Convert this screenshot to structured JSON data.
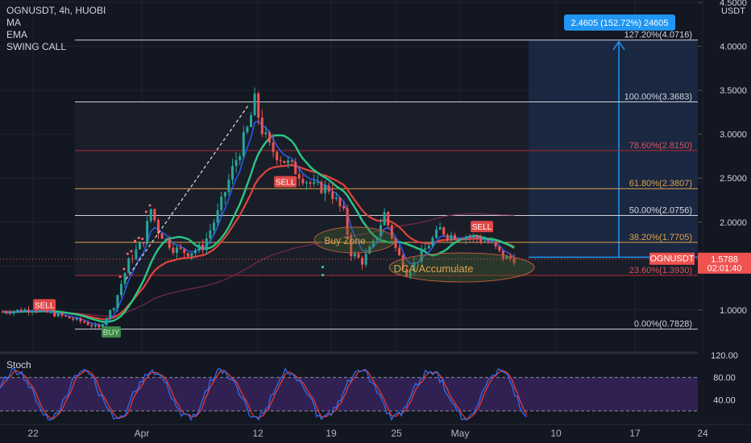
{
  "legend": {
    "symbol_line": "OGNUSDT, 4h, HUOBI",
    "indicators": [
      "MA",
      "EMA",
      "SWING CALL"
    ]
  },
  "currency": "USDT",
  "stoch_label": "Stoch",
  "price_badge": {
    "symbol": "OGNUSDT",
    "price": "1.5788",
    "countdown": "02:01:40"
  },
  "measure_label": "2.4605 (152.72%) 24605",
  "colors": {
    "background": "#131722",
    "fib_white": "#d1d4dc",
    "fib_red": "#b22833",
    "fib_orange": "#e0a24a",
    "ema_red": "#e0443a",
    "ma_green": "#29c785",
    "ma_blue": "#2962ff",
    "stoch_k": "#2f6cf5",
    "stoch_d": "#e53935",
    "stoch_band": "#4a2a7a",
    "measure_blue": "#2196f3",
    "sell_badge": "#e04848",
    "buy_badge": "#3c8a4c"
  },
  "chart_data": [
    {
      "type": "candlestick",
      "title": "OGNUSDT, 4h, HUOBI",
      "ylim": [
        0.55,
        4.5
      ],
      "yticks": [
        "4.5000",
        "4.0000",
        "3.5000",
        "3.0000",
        "2.5000",
        "2.0000",
        "1.5000",
        "1.0000"
      ],
      "xticks": [
        "22",
        "Apr",
        "12",
        "19",
        "25",
        "May",
        "10",
        "17",
        "24"
      ],
      "close_path": [
        [
          0,
          0.98
        ],
        [
          8,
          1.01
        ],
        [
          16,
          0.93
        ],
        [
          22,
          0.86
        ],
        [
          26,
          0.79
        ],
        [
          30,
          1.05
        ],
        [
          34,
          1.55
        ],
        [
          38,
          1.8
        ],
        [
          40,
          2.15
        ],
        [
          42,
          1.9
        ],
        [
          46,
          1.7
        ],
        [
          50,
          1.65
        ],
        [
          54,
          1.72
        ],
        [
          58,
          2.1
        ],
        [
          62,
          2.6
        ],
        [
          66,
          3.05
        ],
        [
          68,
          3.37
        ],
        [
          70,
          3.05
        ],
        [
          72,
          2.85
        ],
        [
          76,
          2.7
        ],
        [
          80,
          2.55
        ],
        [
          84,
          2.4
        ],
        [
          88,
          2.38
        ],
        [
          92,
          2.1
        ],
        [
          94,
          1.65
        ],
        [
          97,
          1.55
        ],
        [
          100,
          1.75
        ],
        [
          103,
          2.1
        ],
        [
          106,
          1.7
        ],
        [
          109,
          1.42
        ],
        [
          112,
          1.58
        ],
        [
          115,
          1.75
        ],
        [
          118,
          1.92
        ],
        [
          120,
          1.85
        ],
        [
          124,
          1.85
        ],
        [
          128,
          1.82
        ],
        [
          132,
          1.75
        ],
        [
          135,
          1.6
        ],
        [
          138,
          1.58
        ]
      ],
      "fib_levels": [
        {
          "label": "127.20%(4.0716)",
          "value": 4.0716
        },
        {
          "label": "100.00%(3.3683)",
          "value": 3.3683
        },
        {
          "label": "78.60%(2.8150)",
          "value": 2.815
        },
        {
          "label": "61.80%(2.3807)",
          "value": 2.3807
        },
        {
          "label": "50.00%(2.0756)",
          "value": 2.0756
        },
        {
          "label": "38.20%(1.7705)",
          "value": 1.7705
        },
        {
          "label": "23.60%(1.3930)",
          "value": 1.393
        },
        {
          "label": "0.00%(0.7828)",
          "value": 0.7828
        }
      ],
      "last_price": 1.5788,
      "signals": [
        {
          "label": "SELL",
          "x": 12,
          "y": 1.06
        },
        {
          "label": "BUY",
          "x": 30,
          "y": 0.75
        },
        {
          "label": "SELL",
          "x": 77,
          "y": 2.46
        },
        {
          "label": "SELL",
          "x": 130,
          "y": 1.95
        }
      ],
      "annotations": [
        "Buy Zone",
        "DCA/Accumulate"
      ]
    },
    {
      "type": "line",
      "title": "Stoch",
      "ylim": [
        0,
        120
      ],
      "yticks": [
        "120.00",
        "80.00",
        "40.00"
      ],
      "band": [
        20,
        80
      ]
    }
  ]
}
